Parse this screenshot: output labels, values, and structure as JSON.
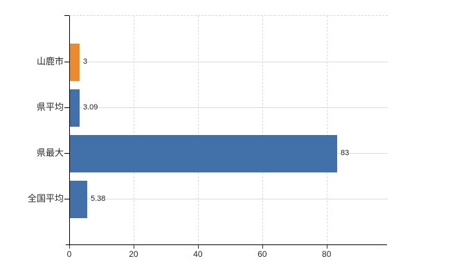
{
  "chart_data": {
    "type": "bar",
    "orientation": "horizontal",
    "title": "",
    "xlabel": "",
    "ylabel": "",
    "categories": [
      "山鹿市",
      "県平均",
      "県最大",
      "全国平均"
    ],
    "values": [
      3,
      3.09,
      83,
      5.38
    ],
    "value_labels": [
      "3",
      "3.09",
      "83",
      "5.38"
    ],
    "bar_colors": [
      "#ee8a2e",
      "#4171a8",
      "#4171a8",
      "#4171a8"
    ],
    "highlight_color": "#ee8a2e",
    "base_color": "#4171a8",
    "xlim": [
      0,
      99
    ],
    "x_ticks": [
      0,
      20,
      40,
      60,
      80
    ],
    "grid": "on",
    "legend": "none",
    "background_color": "#ffffff",
    "vgrid_style": "dashed",
    "hgrid_style": "solid"
  }
}
